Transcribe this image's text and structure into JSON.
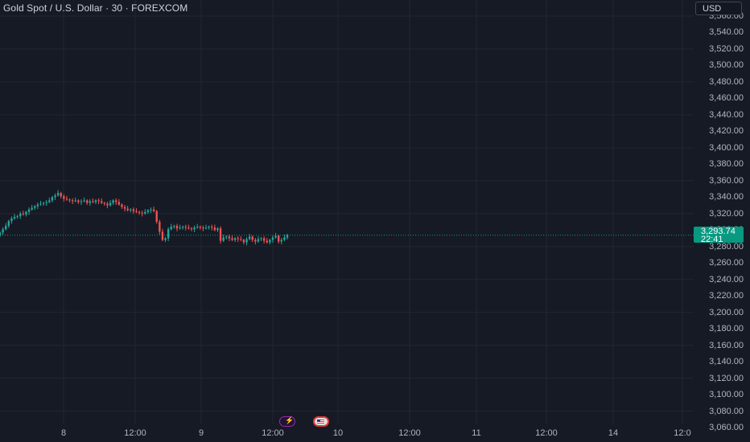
{
  "header": {
    "title": "Gold Spot / U.S. Dollar · 30 · FOREXCOM"
  },
  "price_axis": {
    "currency_button": "USD",
    "labels": [
      "3,560.00",
      "3,540.00",
      "3,520.00",
      "3,500.00",
      "3,480.00",
      "3,460.00",
      "3,440.00",
      "3,420.00",
      "3,400.00",
      "3,380.00",
      "3,360.00",
      "3,340.00",
      "3,320.00",
      "3,300.00",
      "3,280.00",
      "3,260.00",
      "3,240.00",
      "3,220.00",
      "3,200.00",
      "3,180.00",
      "3,160.00",
      "3,140.00",
      "3,120.00",
      "3,100.00",
      "3,080.00",
      "3,060.00"
    ],
    "last_price": "3,293.74",
    "countdown": "22:41"
  },
  "time_axis": {
    "labels": [
      "8",
      "12:00",
      "9",
      "12:00",
      "10",
      "12:00",
      "11",
      "12:00",
      "14",
      "12:0"
    ]
  },
  "chart_data": {
    "type": "candlestick",
    "symbol": "Gold Spot / U.S. Dollar",
    "interval": "30",
    "exchange": "FOREXCOM",
    "ylim": [
      3052,
      3568
    ],
    "last_price": 3293.74,
    "close_series": [
      3297,
      3301,
      3305,
      3311,
      3314,
      3316,
      3317,
      3320,
      3319,
      3322,
      3325,
      3327,
      3329,
      3331,
      3332,
      3333,
      3334,
      3336,
      3340,
      3342,
      3345,
      3341,
      3338,
      3337,
      3336,
      3335,
      3336,
      3334,
      3335,
      3336,
      3333,
      3335,
      3334,
      3336,
      3335,
      3333,
      3332,
      3330,
      3333,
      3336,
      3334,
      3331,
      3328,
      3326,
      3324,
      3325,
      3323,
      3322,
      3321,
      3320,
      3322,
      3324,
      3325,
      3323,
      3310,
      3298,
      3288,
      3290,
      3301,
      3304,
      3305,
      3302,
      3303,
      3304,
      3303,
      3302,
      3301,
      3303,
      3304,
      3303,
      3302,
      3303,
      3304,
      3303,
      3300,
      3302,
      3287,
      3291,
      3292,
      3290,
      3288,
      3290,
      3289,
      3288,
      3285,
      3289,
      3292,
      3288,
      3286,
      3289,
      3290,
      3287,
      3285,
      3288,
      3291,
      3293,
      3286,
      3288,
      3291,
      3294
    ],
    "colors": {
      "up": "#26a69a",
      "down": "#ef5350",
      "last_price": "#089981"
    },
    "grid": true
  },
  "event_icons": [
    "lightning-icon",
    "us-flag-icon"
  ]
}
